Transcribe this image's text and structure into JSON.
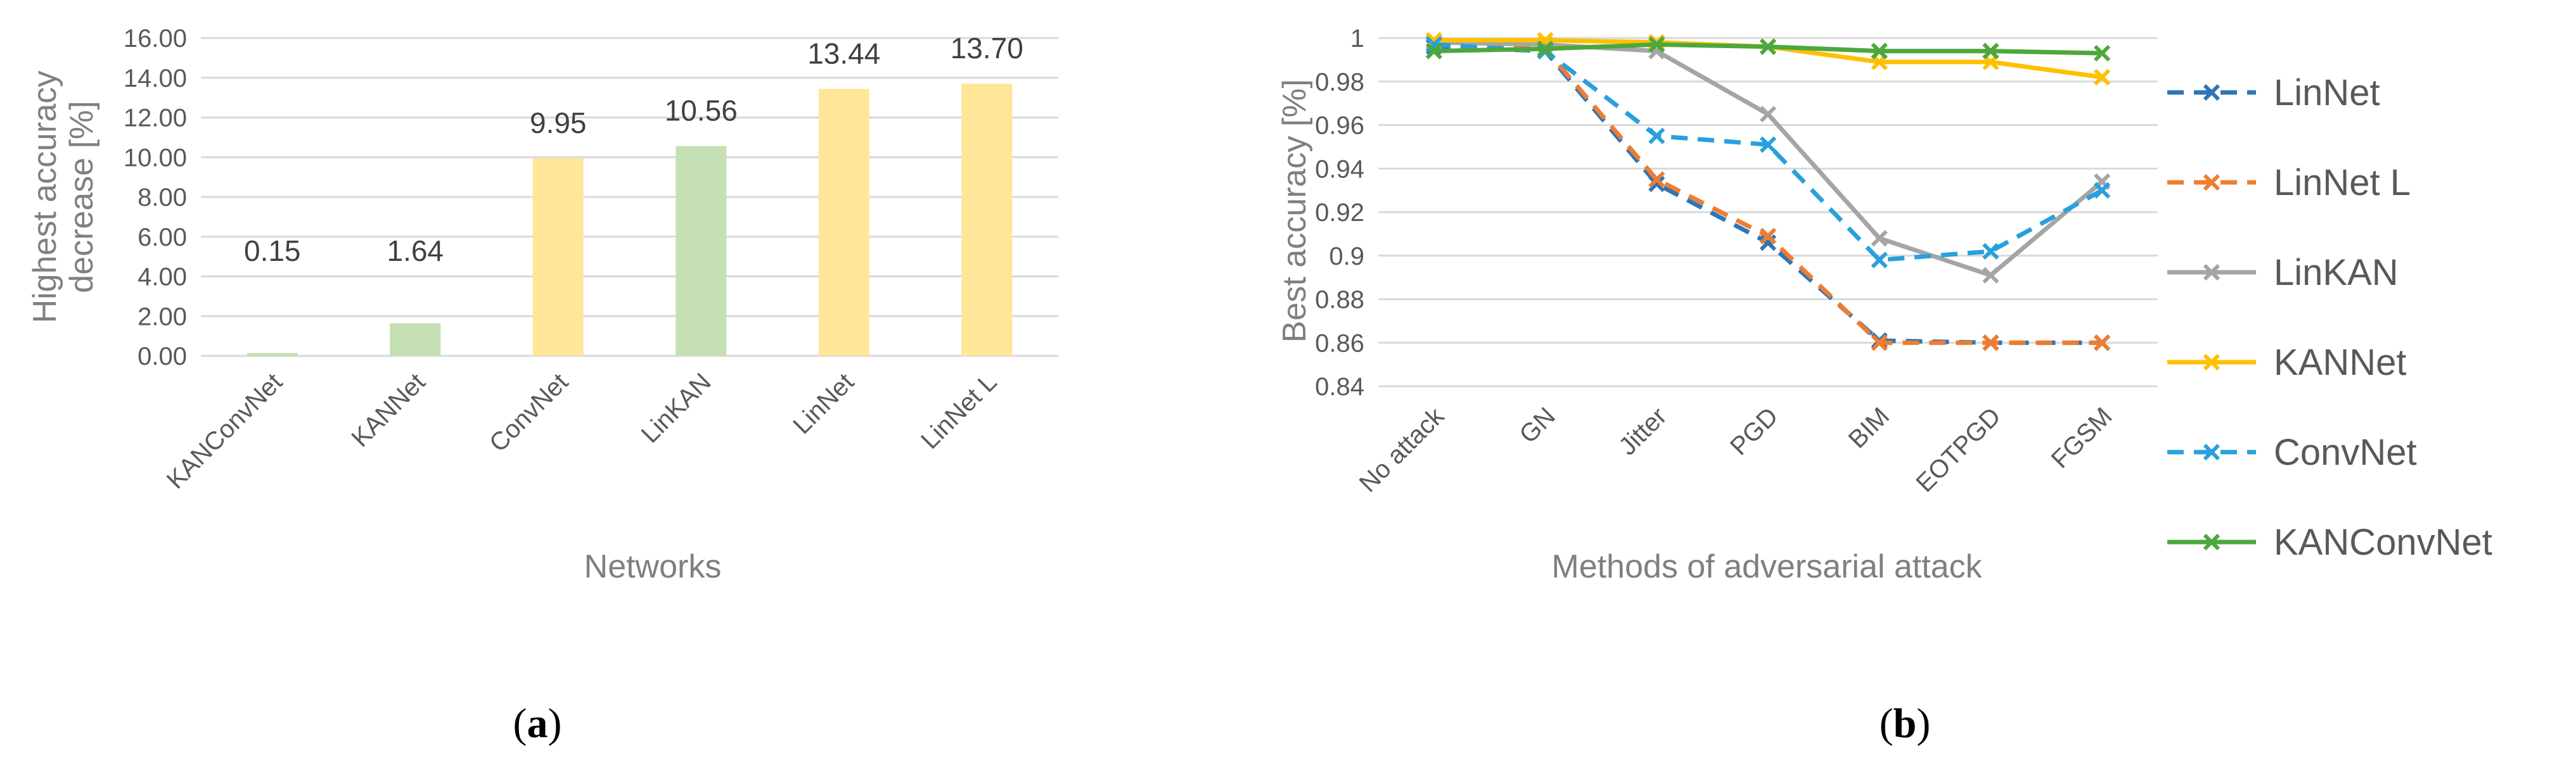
{
  "chart_data": [
    {
      "type": "bar",
      "ylabel": "Highest accuracy\ndecrease [%]",
      "xlabel": "Networks",
      "ylim": [
        0,
        16
      ],
      "ytick_step": 2,
      "ytick_labels": [
        "0.00",
        "2.00",
        "4.00",
        "6.00",
        "8.00",
        "10.00",
        "12.00",
        "14.00",
        "16.00"
      ],
      "grid": true,
      "categories": [
        "KANConvNet",
        "KANNet",
        "ConvNet",
        "LinKAN",
        "LinNet",
        "LinNet L"
      ],
      "values": [
        0.15,
        1.64,
        9.95,
        10.56,
        13.44,
        13.7
      ],
      "value_labels": [
        "0.15",
        "1.64",
        "9.95",
        "10.56",
        "13.44",
        "13.70"
      ],
      "bar_colors": [
        "#c5e0b4",
        "#c5e0b4",
        "#ffe699",
        "#c5e0b4",
        "#ffe699",
        "#ffe699"
      ],
      "panel_label": "(a)"
    },
    {
      "type": "line",
      "ylabel": "Best accuracy [%]",
      "xlabel": "Methods of adversarial attack",
      "ylim": [
        0.84,
        1.0
      ],
      "ytick_labels": [
        "0.84",
        "0.86",
        "0.88",
        "0.9",
        "0.92",
        "0.94",
        "0.96",
        "0.98",
        "1"
      ],
      "grid": true,
      "legend_position": "right",
      "categories": [
        "No attack",
        "GN",
        "Jitter",
        "PGD",
        "BIM",
        "EOTPGD",
        "FGSM"
      ],
      "series": [
        {
          "name": "LinNet",
          "values": [
            0.996,
            0.994,
            0.933,
            0.906,
            0.861,
            0.86,
            0.86
          ],
          "color": "#2e75b6",
          "dash": true
        },
        {
          "name": "LinNet L",
          "values": [
            0.997,
            0.995,
            0.935,
            0.909,
            0.86,
            0.86,
            0.86
          ],
          "color": "#ed7d31",
          "dash": true
        },
        {
          "name": "LinKAN",
          "values": [
            0.998,
            0.997,
            0.994,
            0.965,
            0.908,
            0.891,
            0.934
          ],
          "color": "#a5a5a5",
          "dash": false
        },
        {
          "name": "KANNet",
          "values": [
            0.999,
            0.999,
            0.998,
            0.996,
            0.989,
            0.989,
            0.982
          ],
          "color": "#ffc000",
          "dash": false
        },
        {
          "name": "ConvNet",
          "values": [
            0.997,
            0.994,
            0.955,
            0.951,
            0.898,
            0.902,
            0.93
          ],
          "color": "#28a0dc",
          "dash": true
        },
        {
          "name": "KANConvNet",
          "values": [
            0.994,
            0.995,
            0.997,
            0.996,
            0.994,
            0.994,
            0.993
          ],
          "color": "#4ca83c",
          "dash": false
        }
      ],
      "panel_label": "(b)"
    }
  ]
}
